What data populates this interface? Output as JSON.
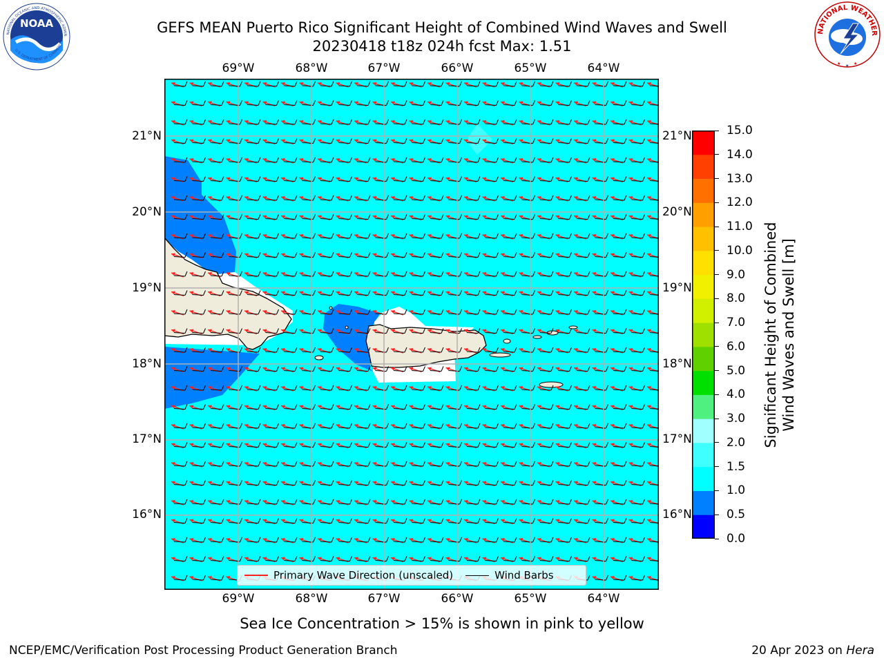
{
  "header": {
    "title_line1": "GEFS MEAN Puerto Rico Significant Height of Combined Wind Waves and Swell",
    "title_line2": "20230418 t18z 024h fcst   Max: 1.51"
  },
  "logos": {
    "left": "NOAA",
    "right": "NATIONAL WEATHER SERVICE"
  },
  "map": {
    "lon_labels": [
      "69°W",
      "68°W",
      "67°W",
      "66°W",
      "65°W",
      "64°W"
    ],
    "lat_labels": [
      "21°N",
      "20°N",
      "19°N",
      "18°N",
      "17°N",
      "16°N"
    ],
    "colors": {
      "ocean": "#00ffff",
      "band_05_10": "#0080ff",
      "land": "#efecdc",
      "barb": "#000000",
      "wave_arrow": "#ff2020"
    }
  },
  "legend": {
    "items": [
      {
        "label": "Primary Wave Direction (unscaled)",
        "color": "#ff2020"
      },
      {
        "label": "Wind Barbs",
        "color": "#000000"
      }
    ]
  },
  "colorbar": {
    "label_line1": "Significant Height of Combined",
    "label_line2": "Wind Waves and Swell [m]",
    "ticks": [
      "0.0",
      "0.5",
      "1.0",
      "1.5",
      "2.0",
      "3.0",
      "4.0",
      "5.0",
      "6.0",
      "7.0",
      "8.0",
      "9.0",
      "10.0",
      "11.0",
      "12.0",
      "13.0",
      "14.0",
      "15.0"
    ],
    "colors": [
      "#0000ff",
      "#0080ff",
      "#00ffff",
      "#40ffff",
      "#a0ffff",
      "#50f080",
      "#00e000",
      "#60d000",
      "#a0e000",
      "#d0f000",
      "#f0f000",
      "#ffe000",
      "#ffc000",
      "#ffa000",
      "#ff7000",
      "#ff4000",
      "#ff0000"
    ]
  },
  "footer": {
    "note": "Sea Ice Concentration > 15% is shown in pink to yellow",
    "left": "NCEP/EMC/Verification Post Processing Product Generation Branch",
    "right_date": "20 Apr 2023 on ",
    "right_host": "Hera"
  }
}
